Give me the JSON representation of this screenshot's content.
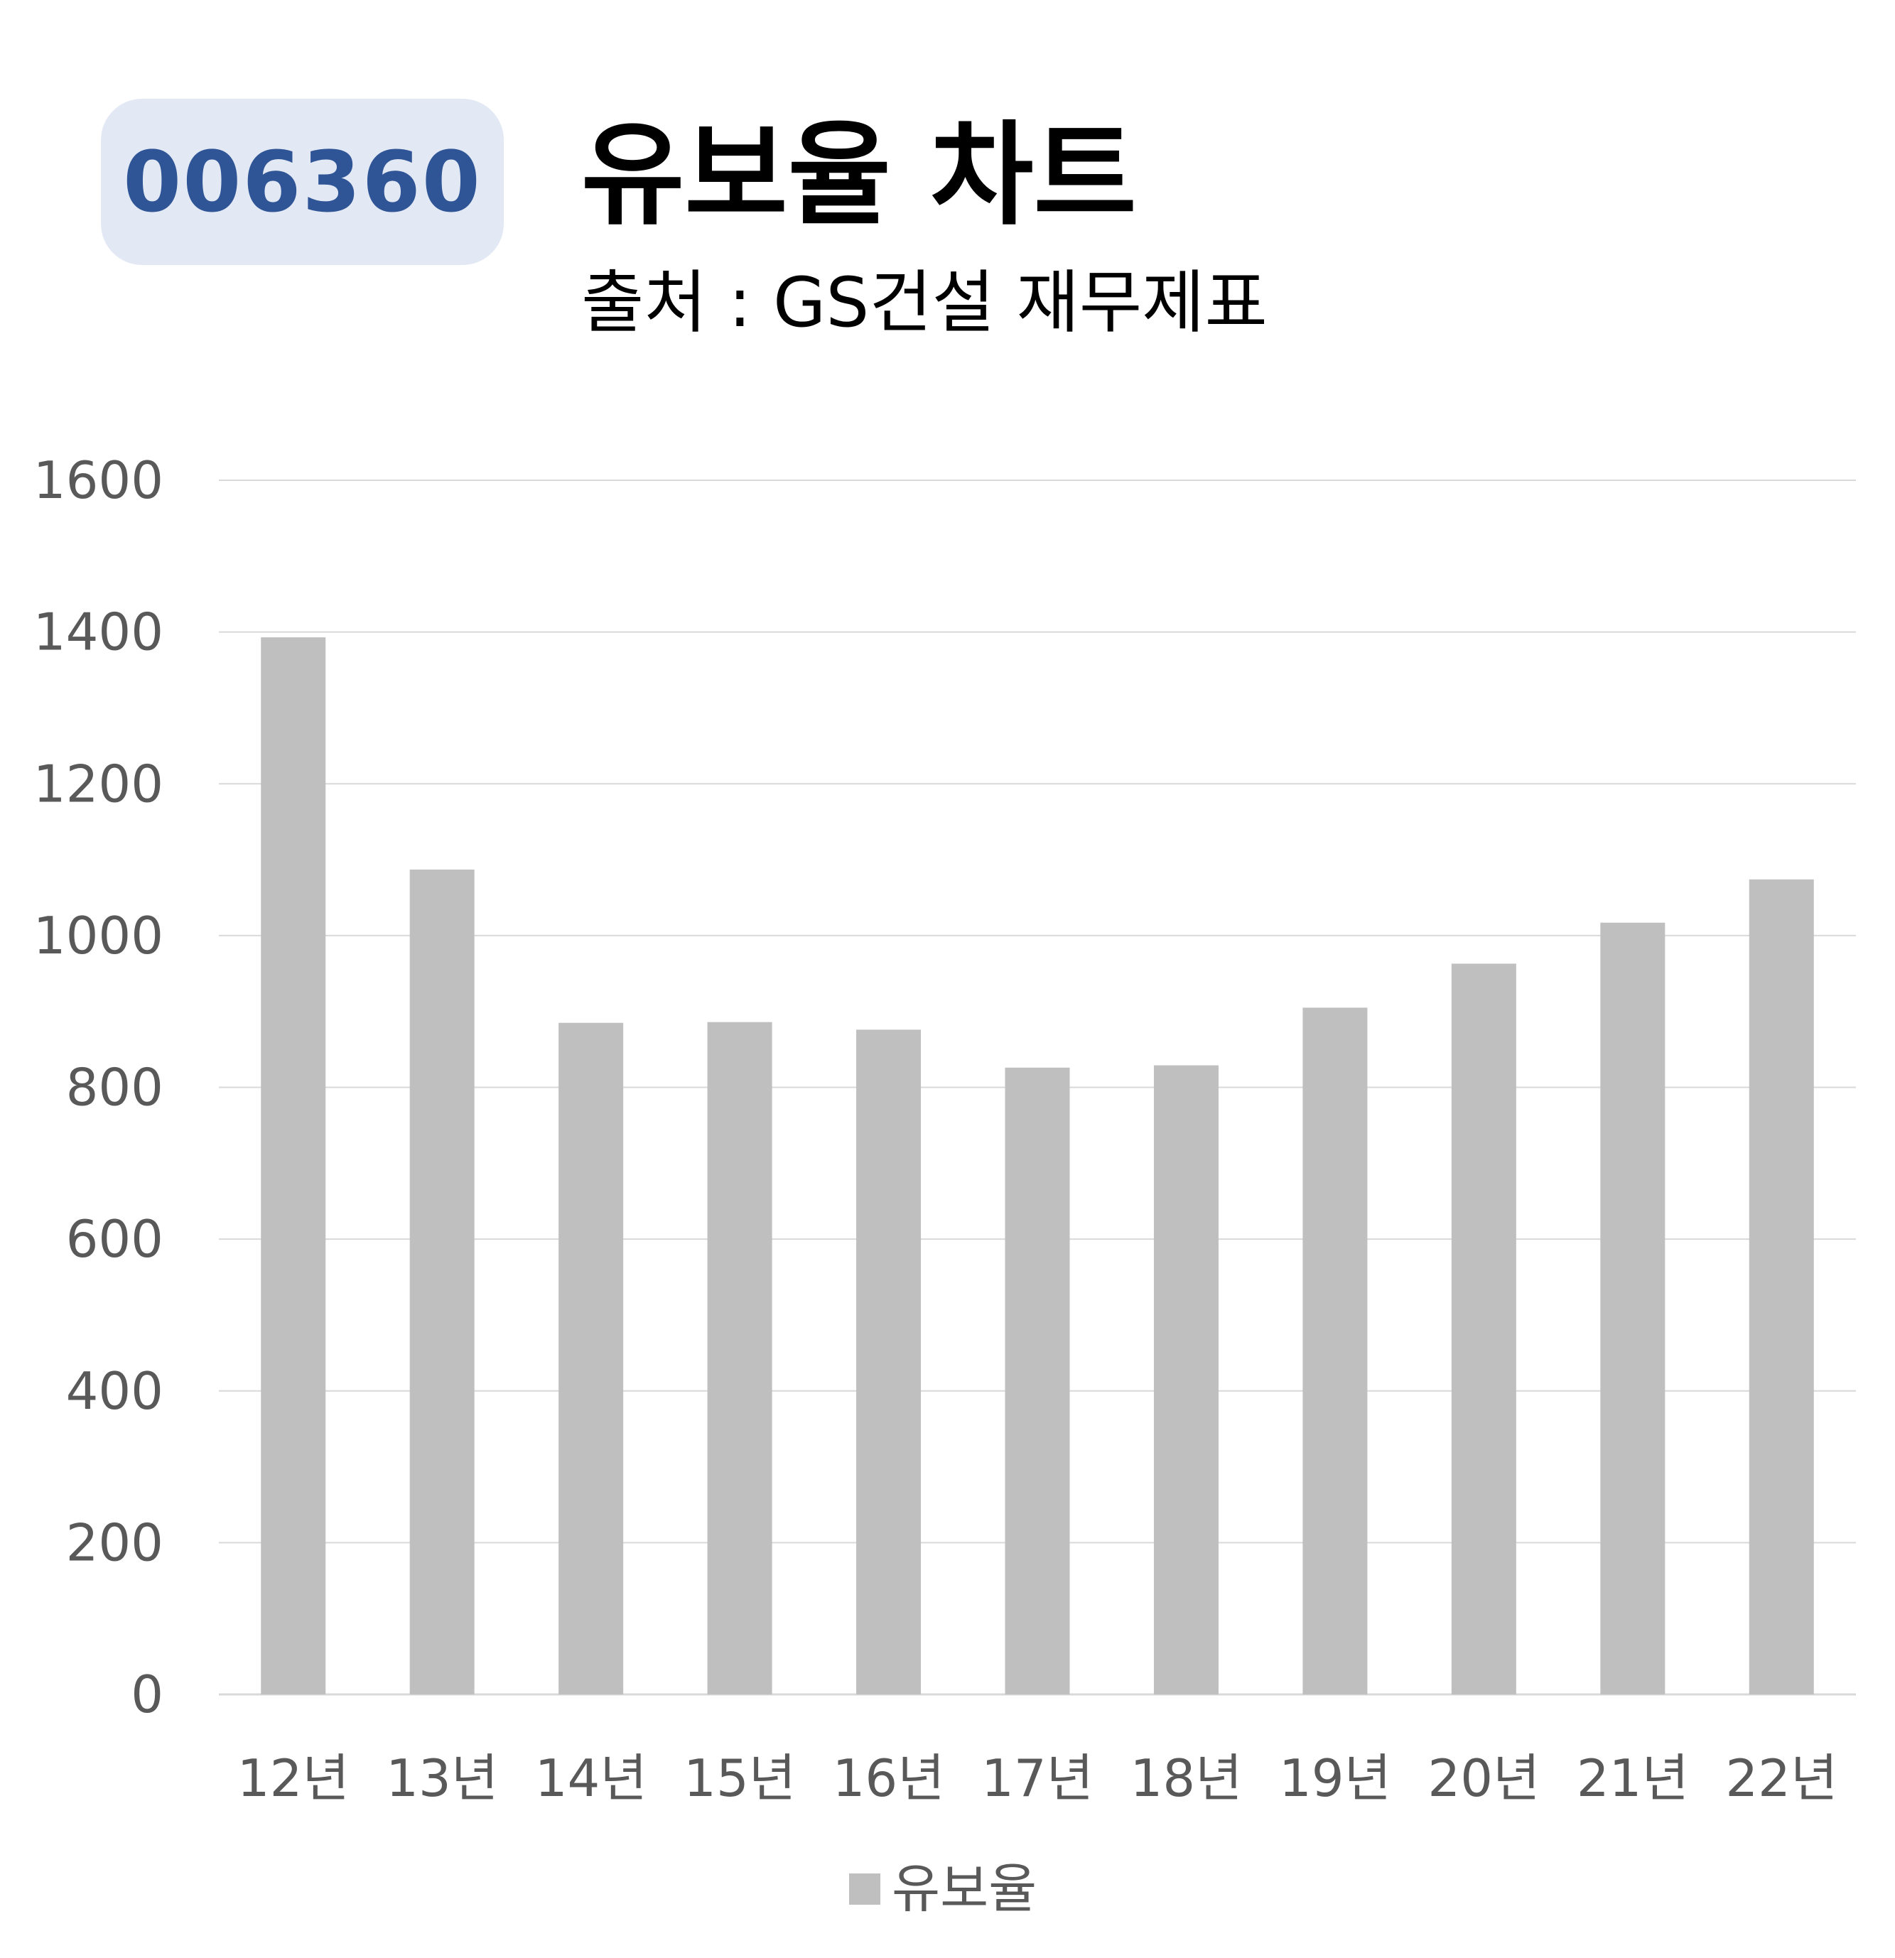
{
  "ticker": "006360",
  "chart_data": {
    "type": "bar",
    "title": "유보율 차트",
    "subtitle": "출처 : GS건설 재무제표",
    "categories": [
      "12년",
      "13년",
      "14년",
      "15년",
      "16년",
      "17년",
      "18년",
      "19년",
      "20년",
      "21년",
      "22년"
    ],
    "series": [
      {
        "name": "유보율",
        "values": [
          1393,
          1087,
          885,
          886,
          876,
          826,
          829,
          905,
          963,
          1017,
          1074
        ]
      }
    ],
    "ylim": [
      0,
      1600
    ],
    "yticks": [
      0,
      200,
      400,
      600,
      800,
      1000,
      1200,
      1400,
      1600
    ],
    "xlabel": "",
    "ylabel": "",
    "grid": true,
    "legend_position": "bottom",
    "colors": {
      "bar": "#bfbfbf",
      "gridline": "#d9d9d9",
      "tick_label": "#595959",
      "badge_bg": "#e3e9f4",
      "badge_text": "#2f5597"
    }
  }
}
